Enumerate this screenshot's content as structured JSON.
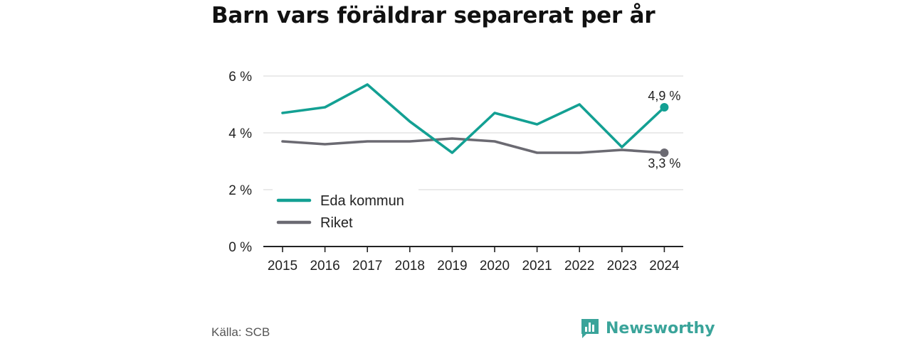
{
  "title": "Barn vars föräldrar separerat per år",
  "source": "Källa: SCB",
  "brand": {
    "name": "Newsworthy",
    "icon": "newsworthy-logo-icon"
  },
  "colors": {
    "eda": "#13a093",
    "riket": "#6b6a72",
    "grid": "#dddddd",
    "axis": "#222222"
  },
  "chart_data": {
    "type": "line",
    "title": "Barn vars föräldrar separerat per år",
    "categories": [
      "2015",
      "2016",
      "2017",
      "2018",
      "2019",
      "2020",
      "2021",
      "2022",
      "2023",
      "2024"
    ],
    "ylim": [
      0,
      6
    ],
    "yticks": [
      {
        "value": 0,
        "label": "0 %"
      },
      {
        "value": 2,
        "label": "2 %"
      },
      {
        "value": 4,
        "label": "4 %"
      },
      {
        "value": 6,
        "label": "6 %"
      }
    ],
    "grid": true,
    "legend_position": "bottom-left",
    "series": [
      {
        "name": "Eda kommun",
        "values": [
          4.7,
          4.9,
          5.7,
          4.4,
          3.3,
          4.7,
          4.3,
          5.0,
          3.5,
          4.9
        ],
        "end_label": "4,9 %"
      },
      {
        "name": "Riket",
        "values": [
          3.7,
          3.6,
          3.7,
          3.7,
          3.8,
          3.7,
          3.3,
          3.3,
          3.4,
          3.3
        ],
        "end_label": "3,3 %"
      }
    ]
  }
}
